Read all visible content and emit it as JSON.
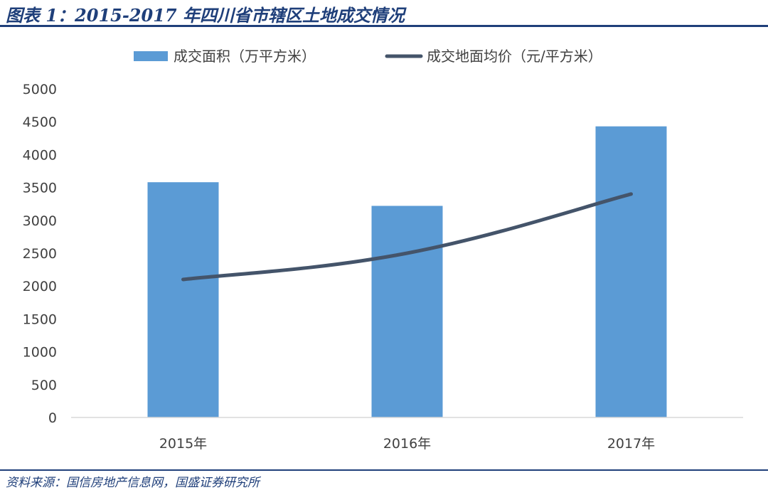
{
  "header": {
    "title": "图表 1：2015-2017 年四川省市辖区土地成交情况"
  },
  "footer": {
    "source": "资料来源：国信房地产信息网，国盛证券研究所"
  },
  "colors": {
    "bar": "#5b9bd5",
    "line": "#44546a",
    "brand": "#1f3f7a"
  },
  "chart_data": {
    "type": "bar",
    "categories": [
      "2015年",
      "2016年",
      "2017年"
    ],
    "series": [
      {
        "name": "成交面积（万平方米）",
        "kind": "bar",
        "values": [
          3580,
          3220,
          4430
        ]
      },
      {
        "name": "成交地面均价（元/平方米）",
        "kind": "line",
        "values": [
          2100,
          2500,
          3400
        ]
      }
    ],
    "y_ticks": [
      "0",
      "500",
      "1000",
      "1500",
      "2000",
      "2500",
      "3000",
      "3500",
      "4000",
      "4500",
      "5000"
    ],
    "ylim": [
      0,
      5000
    ],
    "grid": false,
    "legend_position": "top"
  }
}
